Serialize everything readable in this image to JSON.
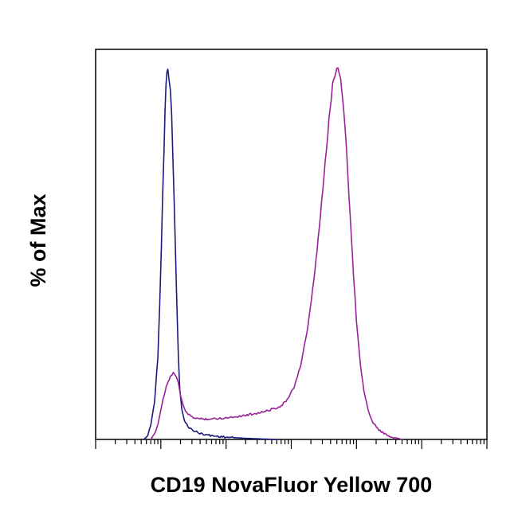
{
  "chart_data": {
    "type": "line",
    "title": "",
    "xlabel": "CD19 NovaFluor Yellow 700",
    "ylabel": "% of Max",
    "xscale": "log",
    "xlim": [
      0.1,
      100000
    ],
    "ylim": [
      0,
      100
    ],
    "grid": false,
    "legend": "none",
    "x_tick_labels_shown": false,
    "y_tick_labels_shown": false,
    "series": [
      {
        "color": "#1a1a80",
        "points": [
          [
            0.55,
            0
          ],
          [
            0.63,
            1
          ],
          [
            0.7,
            4
          ],
          [
            0.8,
            10
          ],
          [
            0.9,
            22
          ],
          [
            0.96,
            36
          ],
          [
            1.02,
            52
          ],
          [
            1.07,
            66
          ],
          [
            1.12,
            78
          ],
          [
            1.16,
            88
          ],
          [
            1.2,
            96
          ],
          [
            1.24,
            99
          ],
          [
            1.28,
            100
          ],
          [
            1.34,
            97
          ],
          [
            1.4,
            93
          ],
          [
            1.46,
            88
          ],
          [
            1.52,
            78
          ],
          [
            1.6,
            64
          ],
          [
            1.68,
            50
          ],
          [
            1.76,
            36
          ],
          [
            1.86,
            22
          ],
          [
            1.96,
            13
          ],
          [
            2.1,
            8
          ],
          [
            2.3,
            5
          ],
          [
            2.6,
            3.5
          ],
          [
            3.0,
            2.6
          ],
          [
            4.0,
            1.6
          ],
          [
            6.0,
            1.0
          ],
          [
            10.0,
            0.6
          ],
          [
            20.0,
            0.3
          ],
          [
            40.0,
            0.1
          ],
          [
            60.0,
            0
          ]
        ]
      },
      {
        "color": "#992299",
        "points": [
          [
            0.7,
            0
          ],
          [
            0.8,
            1.5
          ],
          [
            0.9,
            4
          ],
          [
            1.0,
            8
          ],
          [
            1.12,
            12
          ],
          [
            1.25,
            15
          ],
          [
            1.4,
            17
          ],
          [
            1.55,
            18
          ],
          [
            1.7,
            17
          ],
          [
            1.85,
            15
          ],
          [
            2.0,
            12
          ],
          [
            2.2,
            9
          ],
          [
            2.5,
            7
          ],
          [
            3.0,
            6
          ],
          [
            4.0,
            5.5
          ],
          [
            6.0,
            5.5
          ],
          [
            10.0,
            5.8
          ],
          [
            20.0,
            6.5
          ],
          [
            40.0,
            7.5
          ],
          [
            70.0,
            9
          ],
          [
            90.0,
            11
          ],
          [
            110.0,
            14
          ],
          [
            140.0,
            20
          ],
          [
            180.0,
            30
          ],
          [
            230.0,
            45
          ],
          [
            280.0,
            60
          ],
          [
            330.0,
            74
          ],
          [
            380.0,
            86
          ],
          [
            430.0,
            95
          ],
          [
            480.0,
            99
          ],
          [
            520.0,
            100
          ],
          [
            570.0,
            97
          ],
          [
            630.0,
            90
          ],
          [
            700.0,
            78
          ],
          [
            800.0,
            60
          ],
          [
            900.0,
            44
          ],
          [
            1000.0,
            32
          ],
          [
            1150.0,
            20
          ],
          [
            1300.0,
            13
          ],
          [
            1500.0,
            8
          ],
          [
            1800.0,
            4.5
          ],
          [
            2200.0,
            2.5
          ],
          [
            3000.0,
            1
          ],
          [
            5000.0,
            0
          ]
        ]
      }
    ]
  }
}
